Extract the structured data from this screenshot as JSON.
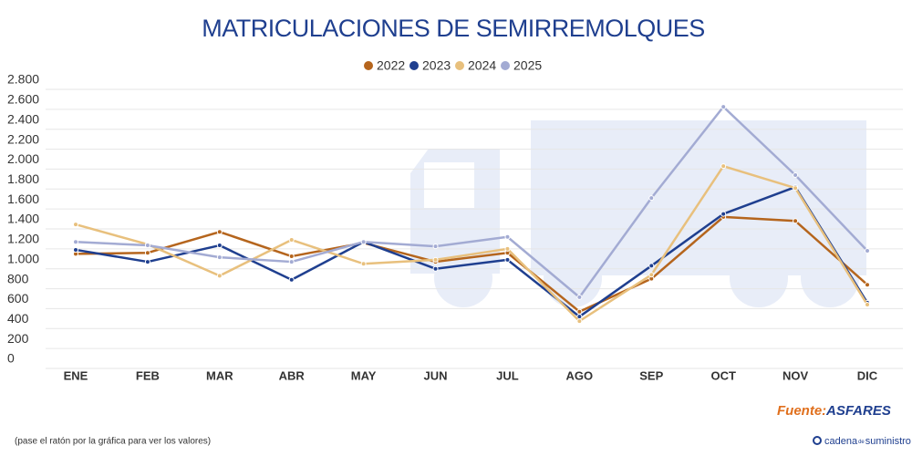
{
  "chart_data": {
    "type": "line",
    "title": "MATRICULACIONES DE SEMIRREMOLQUES",
    "categories": [
      "ENE",
      "FEB",
      "MAR",
      "ABR",
      "MAY",
      "JUN",
      "JUL",
      "AGO",
      "SEP",
      "OCT",
      "NOV",
      "DIC"
    ],
    "series": [
      {
        "name": "2022",
        "color": "#b5651d",
        "values": [
          1150,
          1160,
          1370,
          1125,
          1260,
          1070,
          1160,
          570,
          900,
          1520,
          1480,
          840
        ]
      },
      {
        "name": "2023",
        "color": "#1f3f8f",
        "values": [
          1190,
          1070,
          1235,
          890,
          1270,
          1000,
          1090,
          520,
          1030,
          1550,
          1820,
          660
        ]
      },
      {
        "name": "2024",
        "color": "#e8c07d",
        "values": [
          1445,
          1245,
          930,
          1290,
          1050,
          1090,
          1200,
          475,
          940,
          2030,
          1810,
          640
        ]
      },
      {
        "name": "2025",
        "color": "#a3abd3",
        "values": [
          1270,
          1235,
          1115,
          1070,
          1270,
          1225,
          1320,
          715,
          1710,
          2625,
          1940,
          1180
        ]
      }
    ],
    "ylim": [
      0,
      2800
    ],
    "yticks": [
      0,
      {
        "value": 200,
        "label": "200"
      },
      400,
      600,
      800,
      {
        "value": 1000,
        "label": "1.000"
      },
      {
        "value": 1200,
        "label": "1.200"
      },
      {
        "value": 1400,
        "label": "1.400"
      },
      {
        "value": 1600,
        "label": "1.600"
      },
      {
        "value": 1800,
        "label": "1.800"
      },
      {
        "value": 2000,
        "label": "2.000"
      },
      {
        "value": 2200,
        "label": "2.200"
      },
      {
        "value": 2400,
        "label": "2.400"
      },
      {
        "value": 2600,
        "label": "2.600"
      },
      {
        "value": 2800,
        "label": "2.800"
      }
    ],
    "grid": true,
    "legend": "top",
    "source_label": "Fuente:",
    "source_name": "ASFARES",
    "footnote": "(pase el ratón por la gráfica para ver los valores)",
    "brand": [
      "cadena",
      "de",
      "suministro"
    ]
  }
}
